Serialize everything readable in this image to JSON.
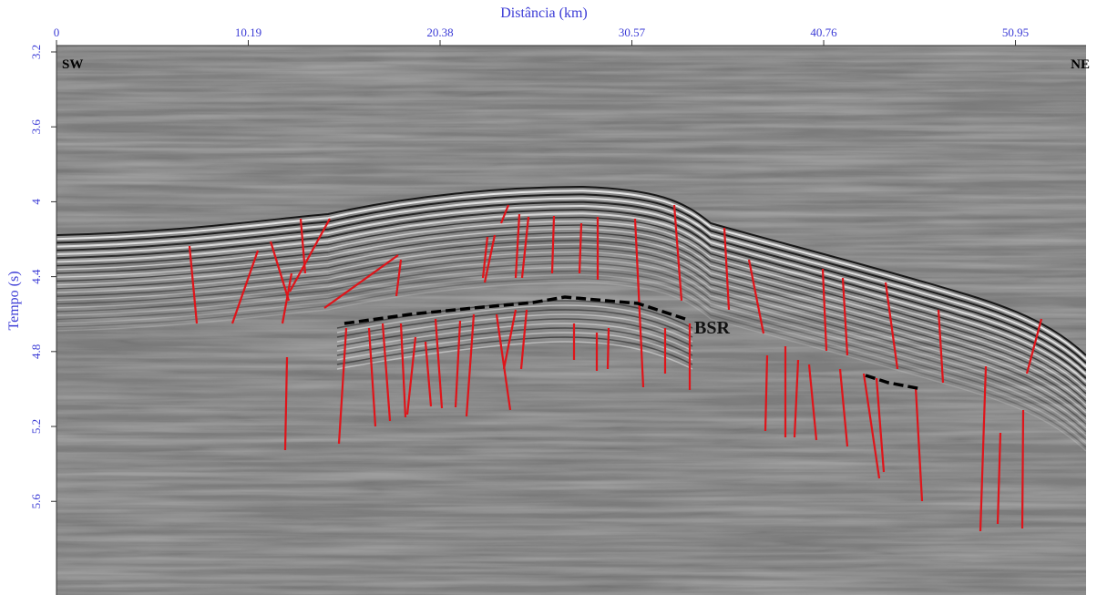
{
  "chart_data": {
    "type": "seismic",
    "title": "Distância (km)",
    "y_label": "Tempo (s)",
    "xlim": [
      0,
      54.7
    ],
    "xticks": [
      0,
      10.19,
      20.38,
      30.57,
      40.76,
      50.95
    ],
    "ylim": [
      3.2,
      6.1
    ],
    "yticks": [
      3.2,
      3.6,
      4,
      4.4,
      4.8,
      5.2,
      5.6
    ],
    "annotations": [
      "SW",
      "NE",
      "BSR"
    ]
  }
}
